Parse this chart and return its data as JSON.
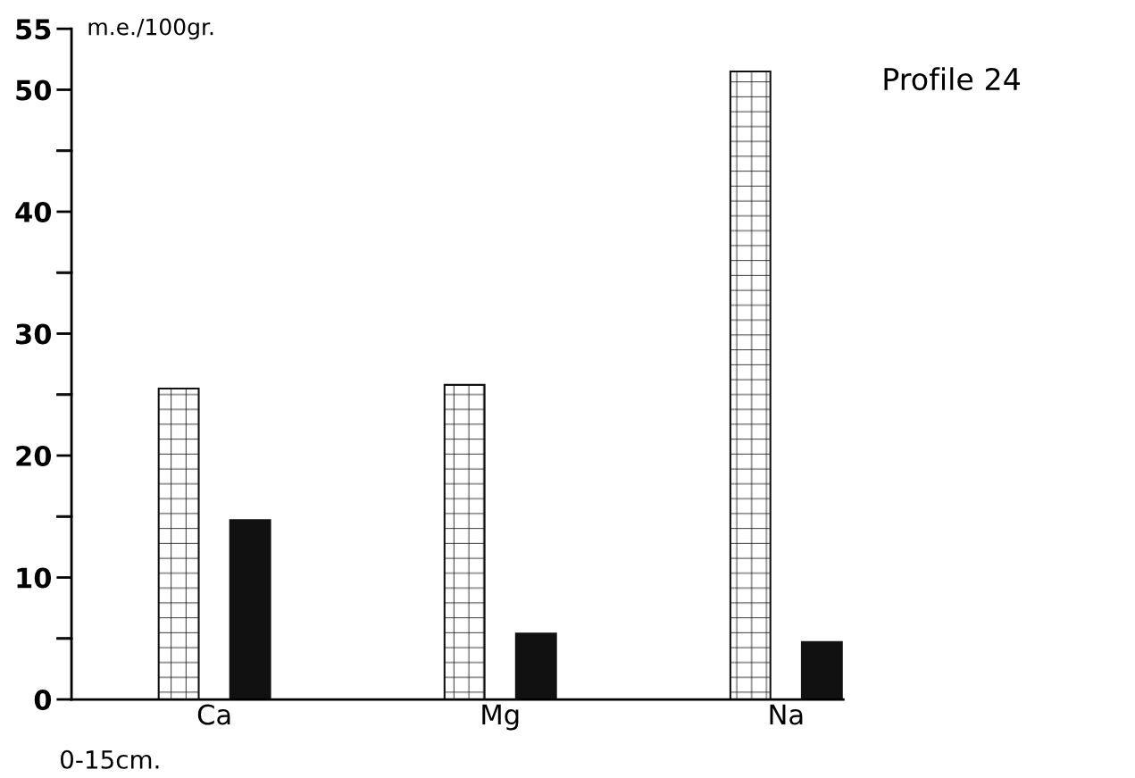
{
  "chart_data": {
    "type": "bar",
    "title": "Profile 24",
    "ylabel": "m.e./100gr.",
    "categories": [
      "Ca",
      "Mg",
      "Na"
    ],
    "series": [
      {
        "color": "#ffffff",
        "values": [
          25.5,
          25.8,
          51.5
        ]
      },
      {
        "color": "#111111",
        "values": [
          14.7,
          5.4,
          4.7
        ]
      }
    ],
    "ylim": [
      0,
      55
    ],
    "yticks": [
      0,
      {
        "value": 5,
        "label": null
      },
      10,
      {
        "value": 15,
        "label": null
      },
      20,
      {
        "value": 25,
        "label": null
      },
      30,
      {
        "value": 35,
        "label": null
      },
      40,
      {
        "value": 45,
        "label": null
      },
      50,
      55
    ],
    "annotations": [
      "0-15cm."
    ],
    "grid": false,
    "legend": false
  }
}
